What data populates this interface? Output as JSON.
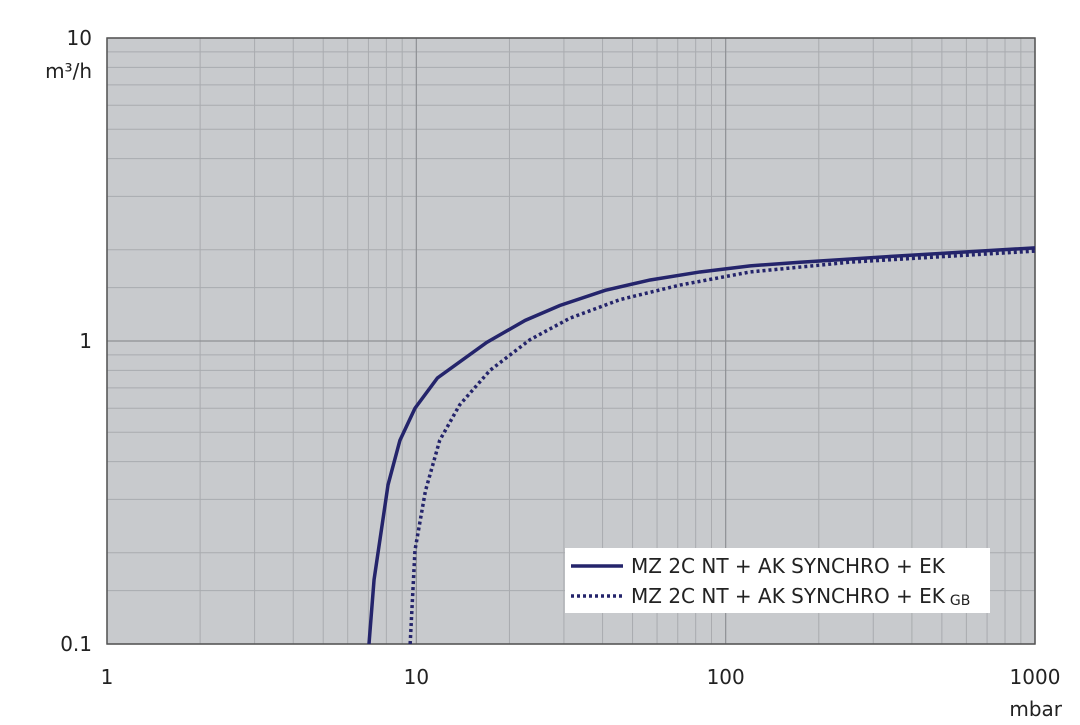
{
  "chart_data": {
    "type": "line",
    "x_label": "mbar",
    "y_label": "m³/h",
    "xscale": "log",
    "yscale": "log",
    "xlim": [
      1,
      1000
    ],
    "ylim": [
      0.1,
      10
    ],
    "xticks": [
      1,
      10,
      100,
      1000
    ],
    "yticks": [
      0.1,
      1,
      10
    ],
    "grid": true,
    "legend": "lower right",
    "series": [
      {
        "name": "MZ 2C NT + AK SYNCHRO + EK",
        "color": "#24246b",
        "style": "solid",
        "x": [
          7.03,
          7.3,
          8.1,
          8.85,
          9.9,
          11.7,
          16.9,
          22.5,
          29.1,
          40.8,
          57,
          82.6,
          120,
          174,
          366,
          1000
        ],
        "values": [
          0.1,
          0.163,
          0.335,
          0.47,
          0.6,
          0.755,
          0.99,
          1.17,
          1.31,
          1.47,
          1.59,
          1.69,
          1.77,
          1.82,
          1.91,
          2.03
        ]
      },
      {
        "name": "MZ 2C NT + AK SYNCHRO + EK",
        "name_suffix": "GB",
        "color": "#24246b",
        "style": "dotted",
        "x": [
          9.55,
          9.9,
          10.7,
          11.9,
          13.8,
          17.3,
          23.3,
          31.4,
          45.6,
          71.2,
          120,
          252,
          1000
        ],
        "values": [
          0.1,
          0.204,
          0.32,
          0.47,
          0.615,
          0.8,
          1.01,
          1.19,
          1.37,
          1.53,
          1.69,
          1.82,
          1.98
        ]
      }
    ]
  }
}
